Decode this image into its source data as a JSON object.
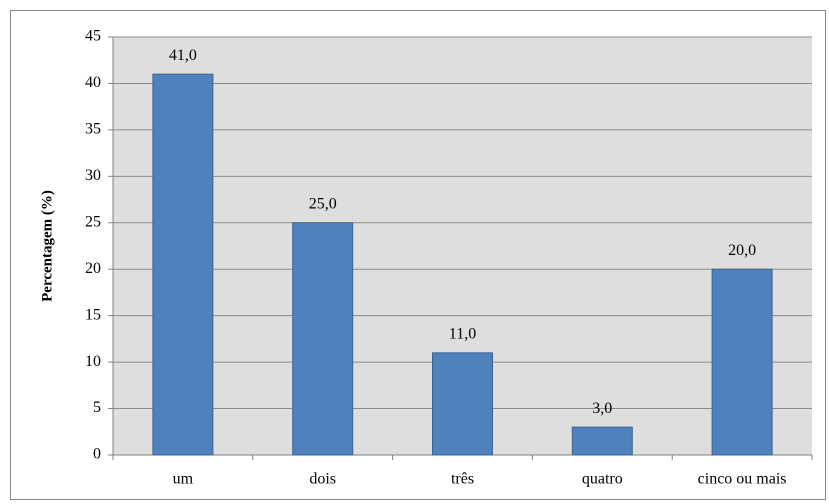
{
  "chart_data": {
    "type": "bar",
    "y_label": "Percentagem (%)",
    "categories": [
      "um",
      "dois",
      "três",
      "quatro",
      "cinco ou mais"
    ],
    "values": [
      41,
      25,
      11,
      3,
      20
    ],
    "value_labels": [
      "41,0",
      "25,0",
      "11,0",
      "3,0",
      "20,0"
    ],
    "color": "#4f81bd",
    "ylim": [
      0,
      45
    ],
    "yticks": [
      0,
      5,
      10,
      15,
      20,
      25,
      30,
      35,
      40,
      45
    ],
    "grid": true
  }
}
